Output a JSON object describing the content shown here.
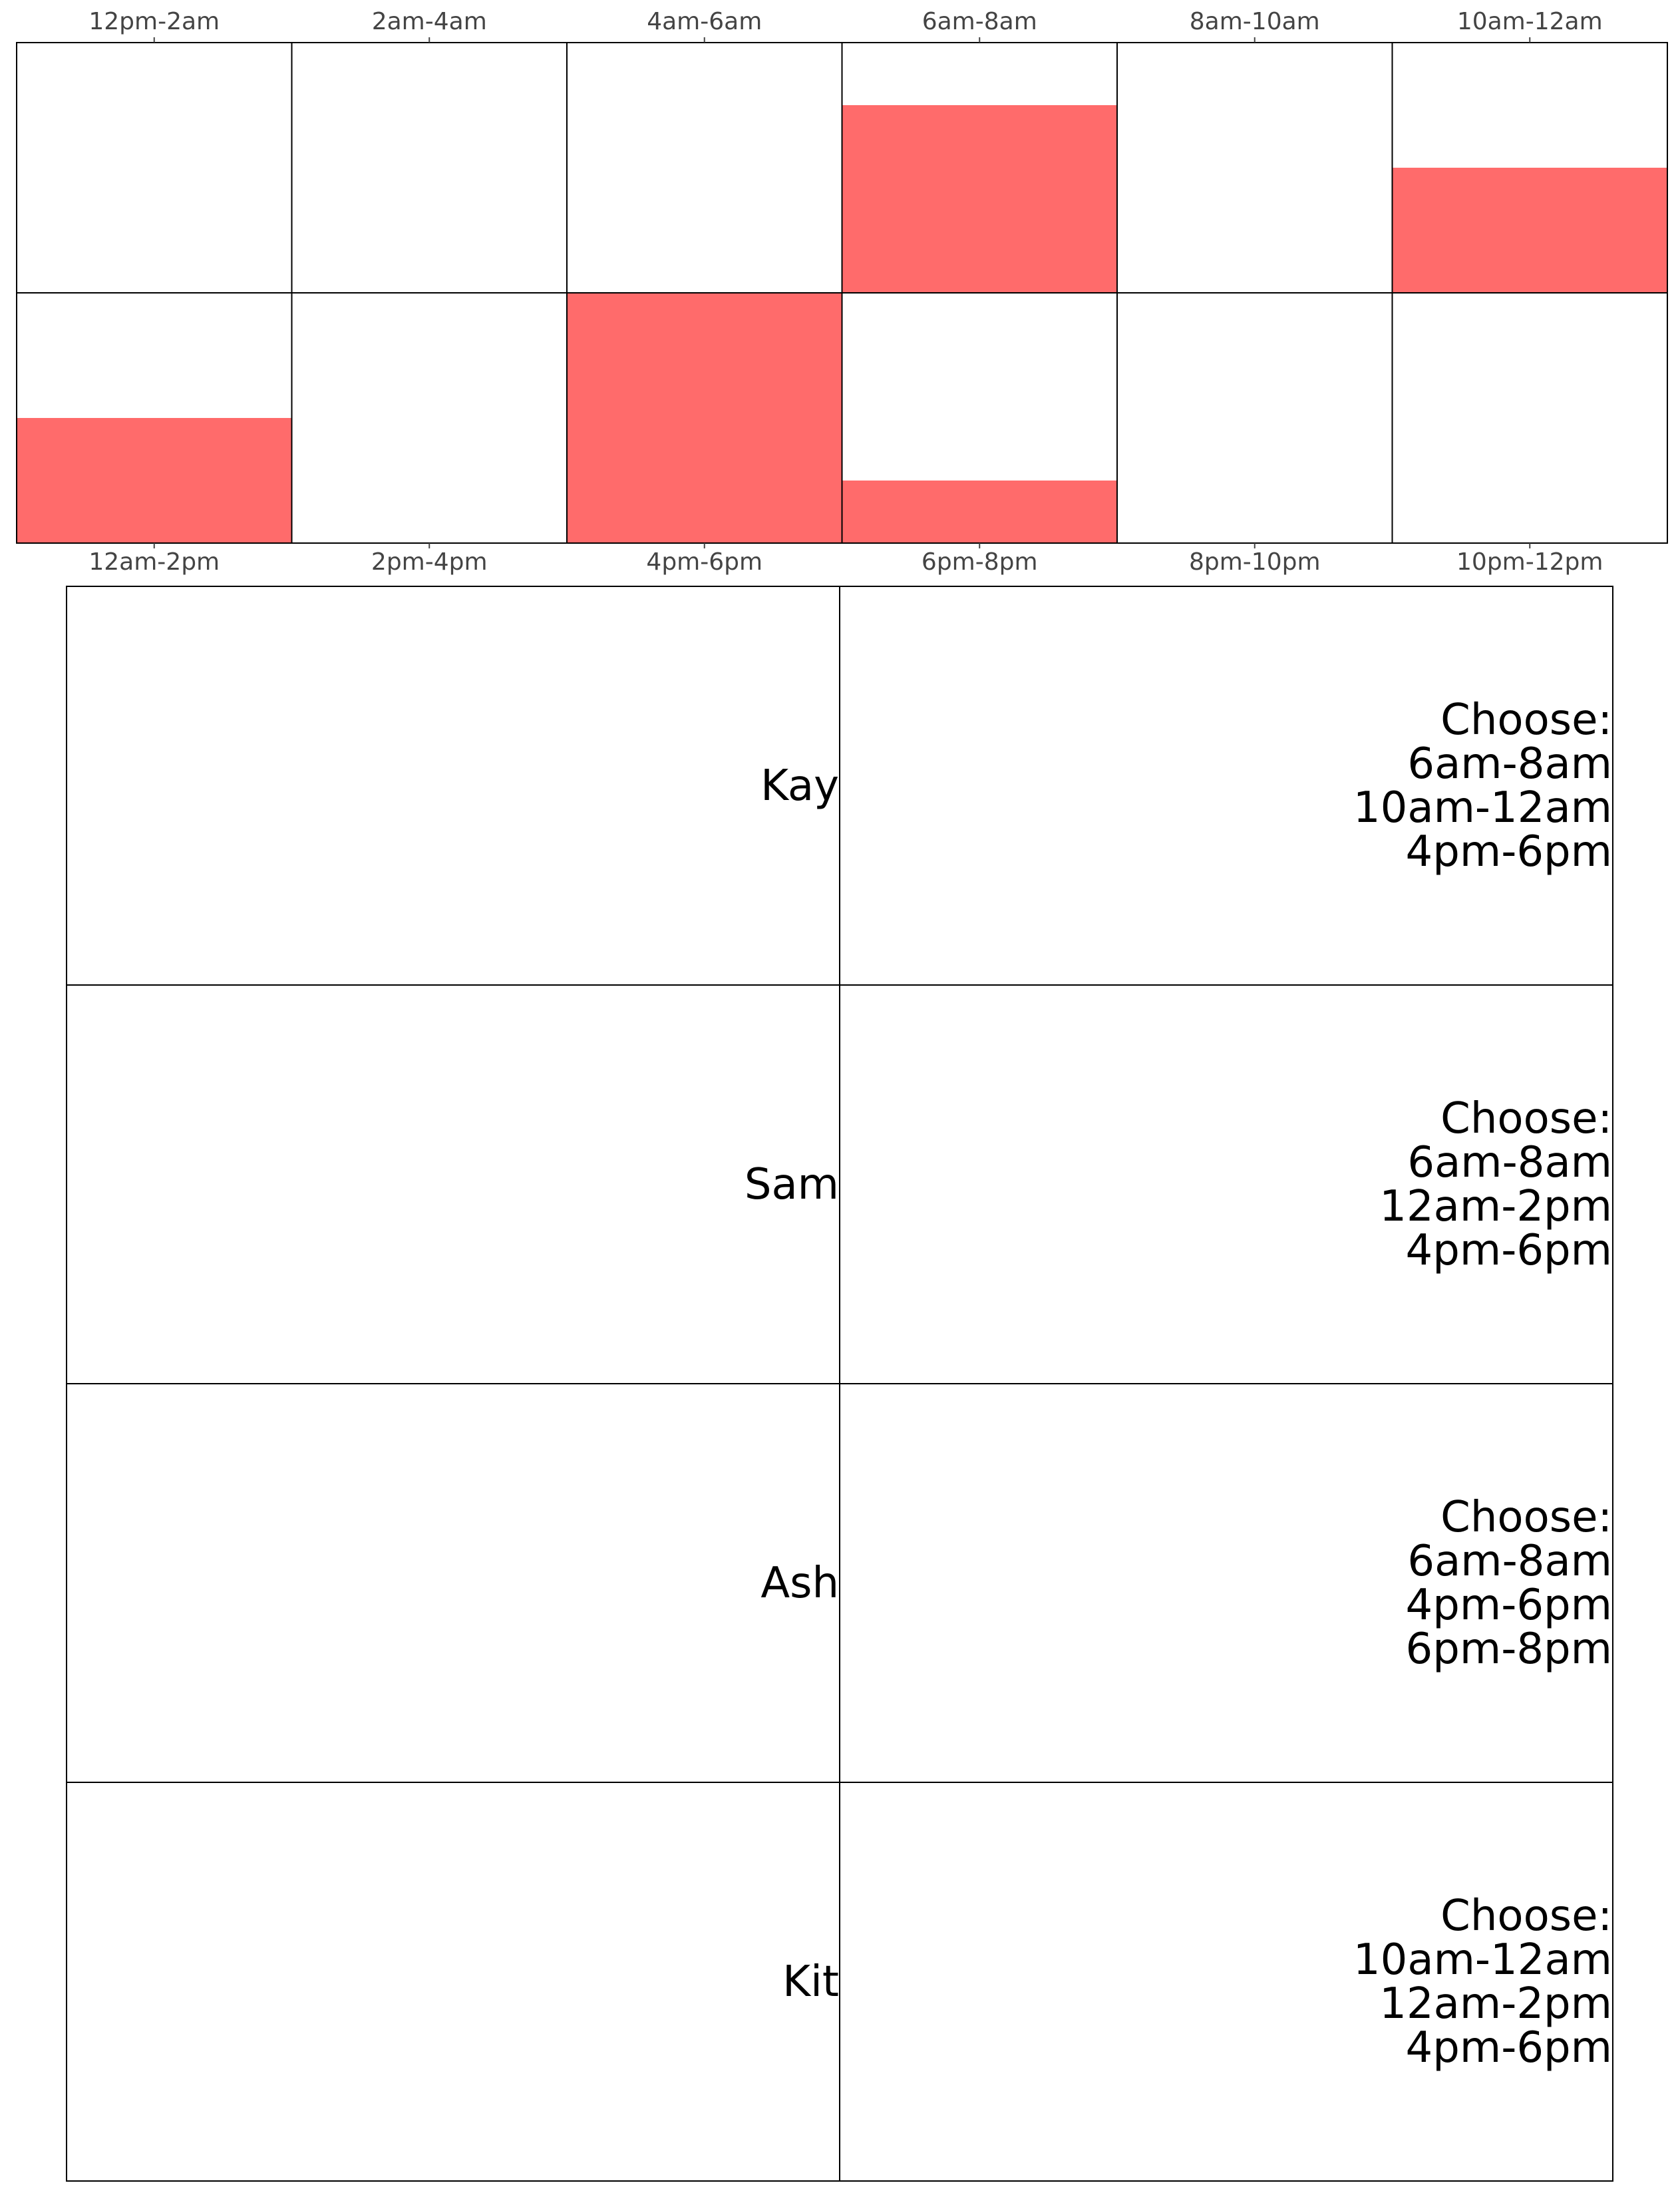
{
  "chart_data": {
    "type": "bar",
    "ylim": [
      0,
      1
    ],
    "colors": {
      "fill": "#ff6b6b",
      "grid": "#000000",
      "tick_text": "#444444"
    },
    "panels": [
      {
        "position": "top",
        "categories": [
          "12pm-2am",
          "2am-4am",
          "4am-6am",
          "6am-8am",
          "8am-10am",
          "10am-12am"
        ],
        "values": [
          0,
          0,
          0,
          0.75,
          0,
          0.5
        ]
      },
      {
        "position": "bottom",
        "categories": [
          "12am-2pm",
          "2pm-4pm",
          "4pm-6pm",
          "6pm-8pm",
          "8pm-10pm",
          "10pm-12pm"
        ],
        "values": [
          0.5,
          0,
          1.0,
          0.25,
          0,
          0
        ]
      }
    ]
  },
  "people": [
    {
      "name": "Kay",
      "choices": [
        "Choose:",
        "6am-8am",
        "10am-12am",
        "4pm-6pm"
      ]
    },
    {
      "name": "Sam",
      "choices": [
        "Choose:",
        "6am-8am",
        "12am-2pm",
        "4pm-6pm"
      ]
    },
    {
      "name": "Ash",
      "choices": [
        "Choose:",
        "6am-8am",
        "4pm-6pm",
        "6pm-8pm"
      ]
    },
    {
      "name": "Kit",
      "choices": [
        "Choose:",
        "10am-12am",
        "12am-2pm",
        "4pm-6pm"
      ]
    }
  ]
}
